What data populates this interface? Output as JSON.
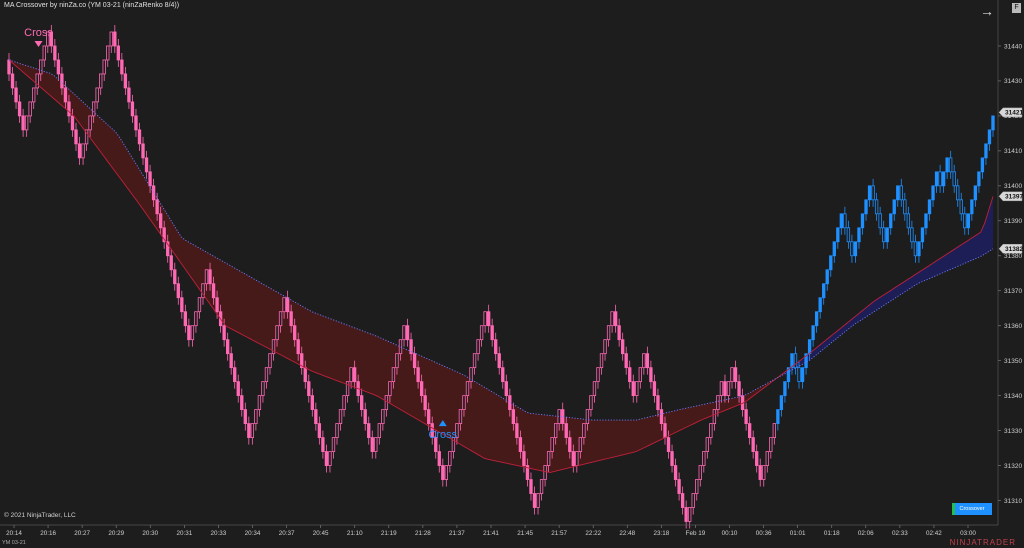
{
  "header": {
    "title": "MA Crossover by ninZa.co (YM 03-21 (ninZaRenko 8/4))"
  },
  "footer": {
    "copyright": "© 2021 NinjaTrader, LLC",
    "symbol": "YM 03-21",
    "brand": "NINJATRADER"
  },
  "toolbar": {
    "arrow_glyph": "→",
    "f_label": "F"
  },
  "legend": {
    "label": "Crossover"
  },
  "colors": {
    "bull": "#1e90ff",
    "bear": "#ff69b4",
    "bull_ribbon": "#1f1f5a",
    "bear_ribbon": "#4a1a1a",
    "fast_ma": "#c0203a",
    "slow_ma": "#6a7cff"
  },
  "chart_data": {
    "type": "candlestick",
    "ylim": [
      31303,
      31448
    ],
    "y_ticks": [
      31310,
      31320,
      31330,
      31340,
      31350,
      31360,
      31370,
      31380,
      31390,
      31400,
      31410,
      31420,
      31430,
      31440
    ],
    "x_ticks": [
      "20:14",
      "20:16",
      "20:27",
      "20:29",
      "20:30",
      "20:31",
      "20:33",
      "20:34",
      "20:37",
      "20:45",
      "21:10",
      "21:19",
      "21:28",
      "21:37",
      "21:41",
      "21:45",
      "21:57",
      "22:22",
      "22:48",
      "23:18",
      "Feb 19",
      "00:10",
      "00:36",
      "01:01",
      "01:18",
      "02:06",
      "02:33",
      "02:42",
      "03:00"
    ],
    "price_flags": [
      31421,
      31397,
      31382
    ],
    "annotations": [
      {
        "text": "Cross",
        "direction": "down",
        "bar": 1,
        "price": 31440
      },
      {
        "text": "Cross",
        "direction": "up",
        "bar": 123,
        "price": 31333
      }
    ],
    "renko_path": [
      31436,
      31416,
      31444,
      31408,
      31444,
      31412,
      31388,
      31356,
      31376,
      31328,
      31368,
      31320,
      31348,
      31324,
      31360,
      31316,
      31364,
      31308,
      31336,
      31320,
      31328,
      31364,
      31340,
      31352,
      31304,
      31344,
      31340,
      31348,
      31316,
      31348,
      31352,
      31344,
      31392,
      31380,
      31400,
      31384,
      31400,
      31380,
      31404,
      31400,
      31408,
      31388,
      31420
    ],
    "fast_ma": {
      "bars": [
        0,
        12,
        24,
        40,
        56,
        68,
        88,
        100,
        116,
        128,
        136,
        148,
        160,
        180,
        182
      ],
      "values": [
        31436,
        31420,
        31395,
        31360,
        31347,
        31340,
        31322,
        31318,
        31324,
        31333,
        31338,
        31352,
        31367,
        31387,
        31397
      ]
    },
    "slow_ma": {
      "bars": [
        0,
        8,
        20,
        32,
        48,
        56,
        68,
        84,
        96,
        108,
        116,
        124,
        136,
        148,
        156,
        168,
        180,
        182
      ],
      "values": [
        31436,
        31432,
        31415,
        31385,
        31371,
        31364,
        31357,
        31346,
        31335,
        31333,
        31333,
        31336,
        31340,
        31350,
        31360,
        31372,
        31380,
        31382
      ]
    }
  }
}
